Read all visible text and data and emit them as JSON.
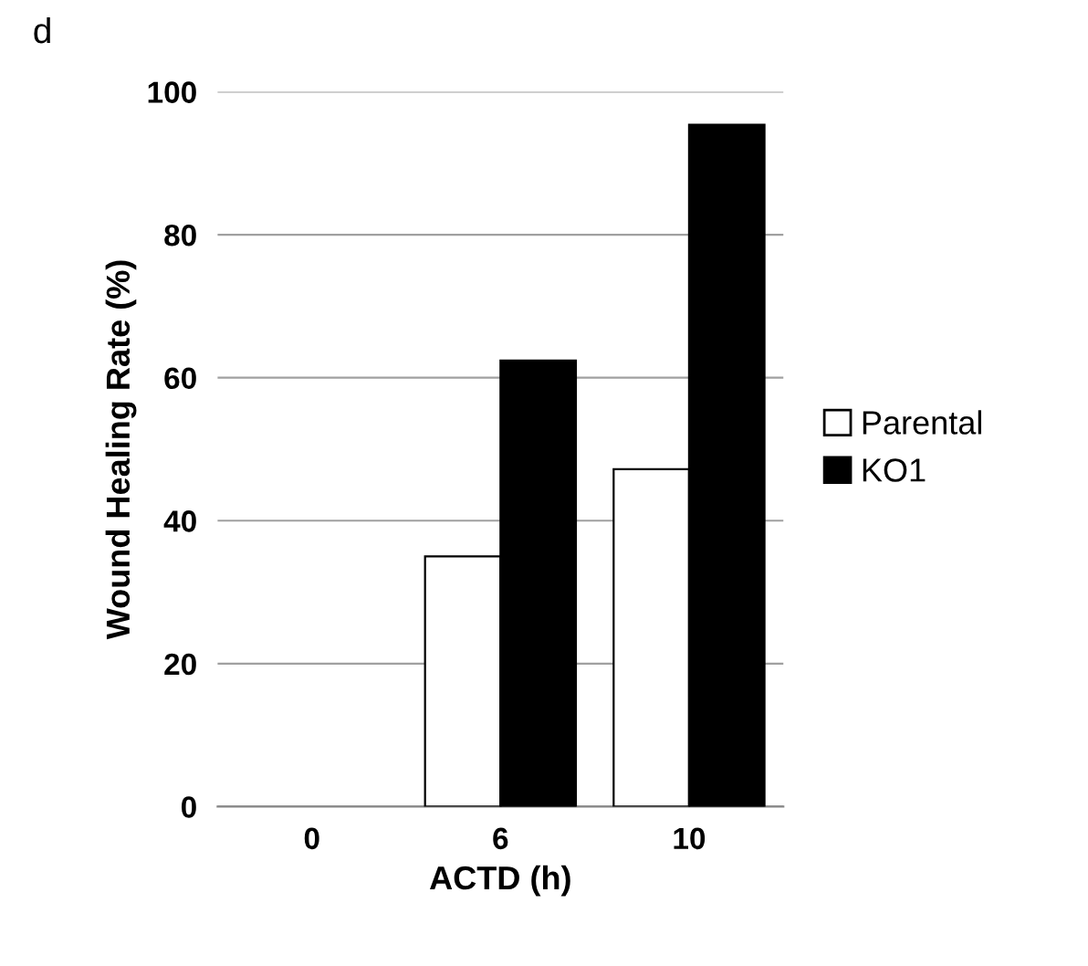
{
  "chart_data": {
    "type": "bar",
    "xlabel": "ACTD (h)",
    "ylabel": "Wound Healing Rate (%)",
    "annotations": [
      "d"
    ],
    "categories": [
      "0",
      "6",
      "10"
    ],
    "series": [
      {
        "name": "Parental",
        "color": "#ffffff",
        "values": [
          null,
          35,
          47.2
        ]
      },
      {
        "name": "KO1",
        "color": "#000000",
        "values": [
          null,
          62.4,
          95.4
        ]
      }
    ],
    "ylim": [
      0,
      100
    ],
    "yticks": [
      0,
      20,
      40,
      60,
      80,
      100
    ],
    "grid": "y",
    "legend": "right"
  }
}
